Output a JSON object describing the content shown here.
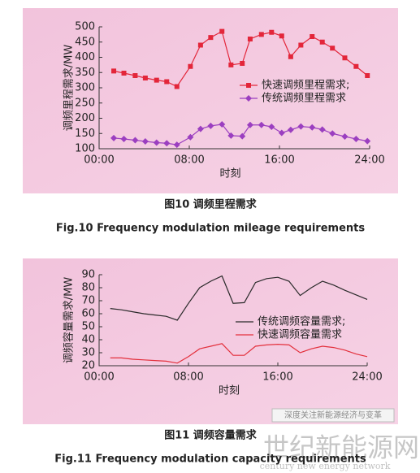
{
  "chart_data": [
    {
      "type": "line",
      "title": "图10  调频里程需求",
      "subtitle": "Fig.10  Frequency modulation mileage requirements",
      "x_label": "时刻",
      "y_label": "调频里程需求/MW",
      "xlim": [
        0,
        24
      ],
      "xticks": [
        {
          "value": 0,
          "label": "00:00"
        },
        {
          "value": 8,
          "label": "08:00"
        },
        {
          "value": 16,
          "label": "16:00"
        },
        {
          "value": 24,
          "label": "24:00"
        }
      ],
      "ylim": [
        100,
        500
      ],
      "yticks": [
        100,
        150,
        200,
        250,
        300,
        350,
        400,
        450,
        500
      ],
      "x": [
        1.3,
        2.2,
        3.2,
        4.1,
        5.1,
        6.0,
        6.9,
        8.1,
        9.0,
        9.9,
        10.9,
        11.7,
        12.7,
        13.4,
        14.4,
        15.3,
        16.2,
        17.0,
        17.9,
        18.9,
        19.8,
        20.7,
        21.8,
        22.8,
        23.8
      ],
      "series": [
        {
          "name": "快速调频里程需求;",
          "color": "#e3263a",
          "marker": "square",
          "values": [
            355,
            348,
            340,
            332,
            325,
            320,
            304,
            370,
            440,
            465,
            485,
            375,
            380,
            460,
            475,
            482,
            470,
            402,
            440,
            468,
            450,
            430,
            398,
            370,
            340
          ]
        },
        {
          "name": "传统调频里程需求",
          "color": "#9b3fc0",
          "marker": "diamond",
          "values": [
            135,
            132,
            128,
            124,
            120,
            118,
            113,
            138,
            165,
            175,
            180,
            143,
            141,
            178,
            178,
            172,
            152,
            162,
            173,
            170,
            163,
            150,
            140,
            132,
            125
          ]
        }
      ]
    },
    {
      "type": "line",
      "title": "图11  调频容量需求",
      "subtitle": "Fig.11  Frequency modulation capacity requirements",
      "x_label": "时刻",
      "y_label": "调频容量需求/MW",
      "xlim": [
        0,
        24
      ],
      "xticks": [
        {
          "value": 0,
          "label": "00:00"
        },
        {
          "value": 8,
          "label": "08:00"
        },
        {
          "value": 16,
          "label": "16:00"
        },
        {
          "value": 24,
          "label": "24:00"
        }
      ],
      "ylim": [
        20,
        90
      ],
      "yticks": [
        20,
        30,
        40,
        50,
        60,
        70,
        80,
        90
      ],
      "x": [
        1,
        2,
        3,
        4,
        5,
        6,
        7,
        8,
        9,
        10,
        11,
        12,
        13,
        14,
        15,
        16,
        17,
        18,
        19,
        20,
        21,
        22,
        23,
        24
      ],
      "series": [
        {
          "name": "传统调频容量需求;",
          "color": "#2a2a2a",
          "values": [
            64,
            63,
            61.5,
            60,
            59,
            58,
            55,
            68,
            80,
            85,
            89,
            68,
            68.5,
            84,
            87,
            88,
            85,
            74,
            80,
            85,
            82,
            78,
            74.5,
            71
          ]
        },
        {
          "name": "快速调频容量需求",
          "color": "#e3303c",
          "values": [
            26,
            26,
            25,
            24.5,
            24,
            23.5,
            22,
            27,
            33,
            35,
            37,
            28,
            28,
            35,
            36,
            36.5,
            36,
            30,
            33,
            35,
            34,
            32,
            29,
            27
          ]
        }
      ]
    }
  ],
  "watermark": {
    "slogan": "深度关注新能源经济与变革",
    "logo": "世纪新能源网",
    "logo_sub": "century new energy network"
  }
}
